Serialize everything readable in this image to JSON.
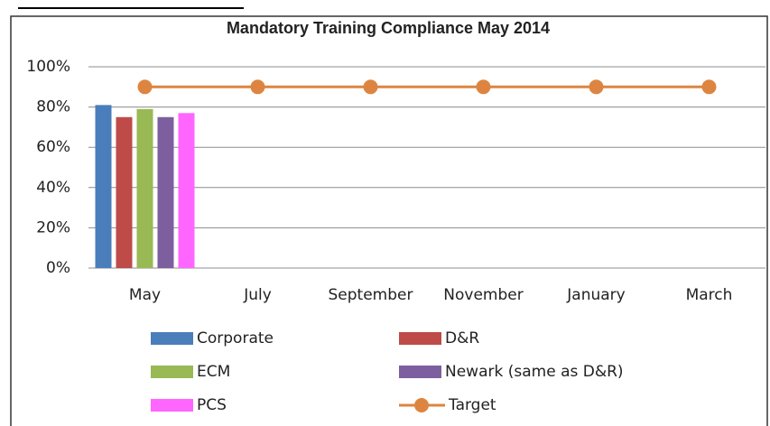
{
  "chart_data": {
    "type": "bar",
    "title": "Mandatory Training Compliance May 2014",
    "categories": [
      "May",
      "July",
      "September",
      "November",
      "January",
      "March"
    ],
    "series": [
      {
        "name": "Corporate",
        "color": "#4a7ebb",
        "values": [
          81,
          null,
          null,
          null,
          null,
          null
        ]
      },
      {
        "name": "D&R",
        "color": "#be4b48",
        "values": [
          75,
          null,
          null,
          null,
          null,
          null
        ]
      },
      {
        "name": "ECM",
        "color": "#98b954",
        "values": [
          79,
          null,
          null,
          null,
          null,
          null
        ]
      },
      {
        "name": "Newark (same as D&R)",
        "color": "#7d5fa0",
        "values": [
          75,
          null,
          null,
          null,
          null,
          null
        ]
      },
      {
        "name": "PCS",
        "color": "#ff66ff",
        "values": [
          77,
          null,
          null,
          null,
          null,
          null
        ]
      },
      {
        "name": "Target",
        "color": "#dd8540",
        "type": "line",
        "values": [
          90,
          90,
          90,
          90,
          90,
          90
        ]
      }
    ],
    "ylim": [
      0,
      100
    ],
    "yticks": [
      {
        "value": 0,
        "label": "0%"
      },
      {
        "value": 20,
        "label": "20%"
      },
      {
        "value": 40,
        "label": "40%"
      },
      {
        "value": 60,
        "label": "60%"
      },
      {
        "value": 80,
        "label": "80%"
      },
      {
        "value": 100,
        "label": "100%"
      }
    ],
    "grid": true
  }
}
